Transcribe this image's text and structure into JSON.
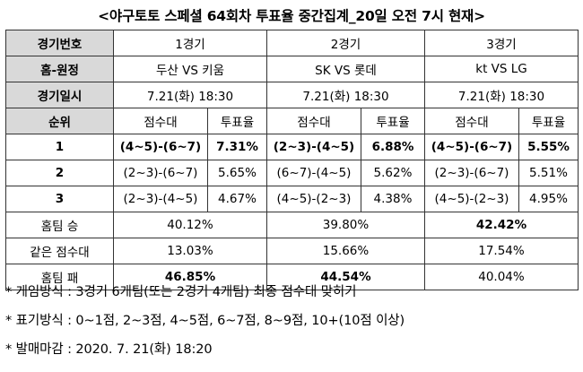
{
  "title": "<야구토토 스페셜 64회차 투표율 중간집계_20일 오전 7시 현재>",
  "labels": {
    "game_no": "경기번호",
    "teams": "홈-원정",
    "datetime": "경기일시",
    "rank": "순위",
    "score_range": "점수대",
    "vote_rate": "투표율",
    "home_win": "홈팀 승",
    "same_score": "같은 점수대",
    "home_loss": "홈팀 패"
  },
  "games": [
    {
      "no": "1경기",
      "teams": "두산 VS 키움",
      "datetime": "7.21(화) 18:30",
      "ranks": [
        {
          "range": "(4~5)-(6~7)",
          "rate": "7.31%"
        },
        {
          "range": "(2~3)-(6~7)",
          "rate": "5.65%"
        },
        {
          "range": "(2~3)-(4~5)",
          "rate": "4.67%"
        }
      ],
      "home_win": "40.12%",
      "same": "13.03%",
      "home_loss": "46.85%"
    },
    {
      "no": "2경기",
      "teams": "SK VS 롯데",
      "datetime": "7.21(화) 18:30",
      "ranks": [
        {
          "range": "(2~3)-(4~5)",
          "rate": "6.88%"
        },
        {
          "range": "(6~7)-(4~5)",
          "rate": "5.62%"
        },
        {
          "range": "(4~5)-(2~3)",
          "rate": "4.38%"
        }
      ],
      "home_win": "39.80%",
      "same": "15.66%",
      "home_loss": "44.54%"
    },
    {
      "no": "3경기",
      "teams": "kt VS LG",
      "datetime": "7.21(화) 18:30",
      "ranks": [
        {
          "range": "(4~5)-(6~7)",
          "rate": "5.55%"
        },
        {
          "range": "(2~3)-(6~7)",
          "rate": "5.51%"
        },
        {
          "range": "(4~5)-(2~3)",
          "rate": "4.95%"
        }
      ],
      "home_win": "42.42%",
      "same": "17.54%",
      "home_loss": "40.04%"
    }
  ],
  "rank_numbers": [
    "1",
    "2",
    "3"
  ],
  "notes": [
    "* 게임방식 : 3경기 6개팀(또는 2경기 4개팀) 최종 점수대 맞히기",
    "* 표기방식 : 0~1점, 2~3점, 4~5점, 6~7점, 8~9점, 10+(10점 이상)",
    "* 발매마감 : 2020. 7. 21(화) 18:20"
  ],
  "colors": {
    "header_bg": "#d9d9d9",
    "border": "#333333"
  }
}
